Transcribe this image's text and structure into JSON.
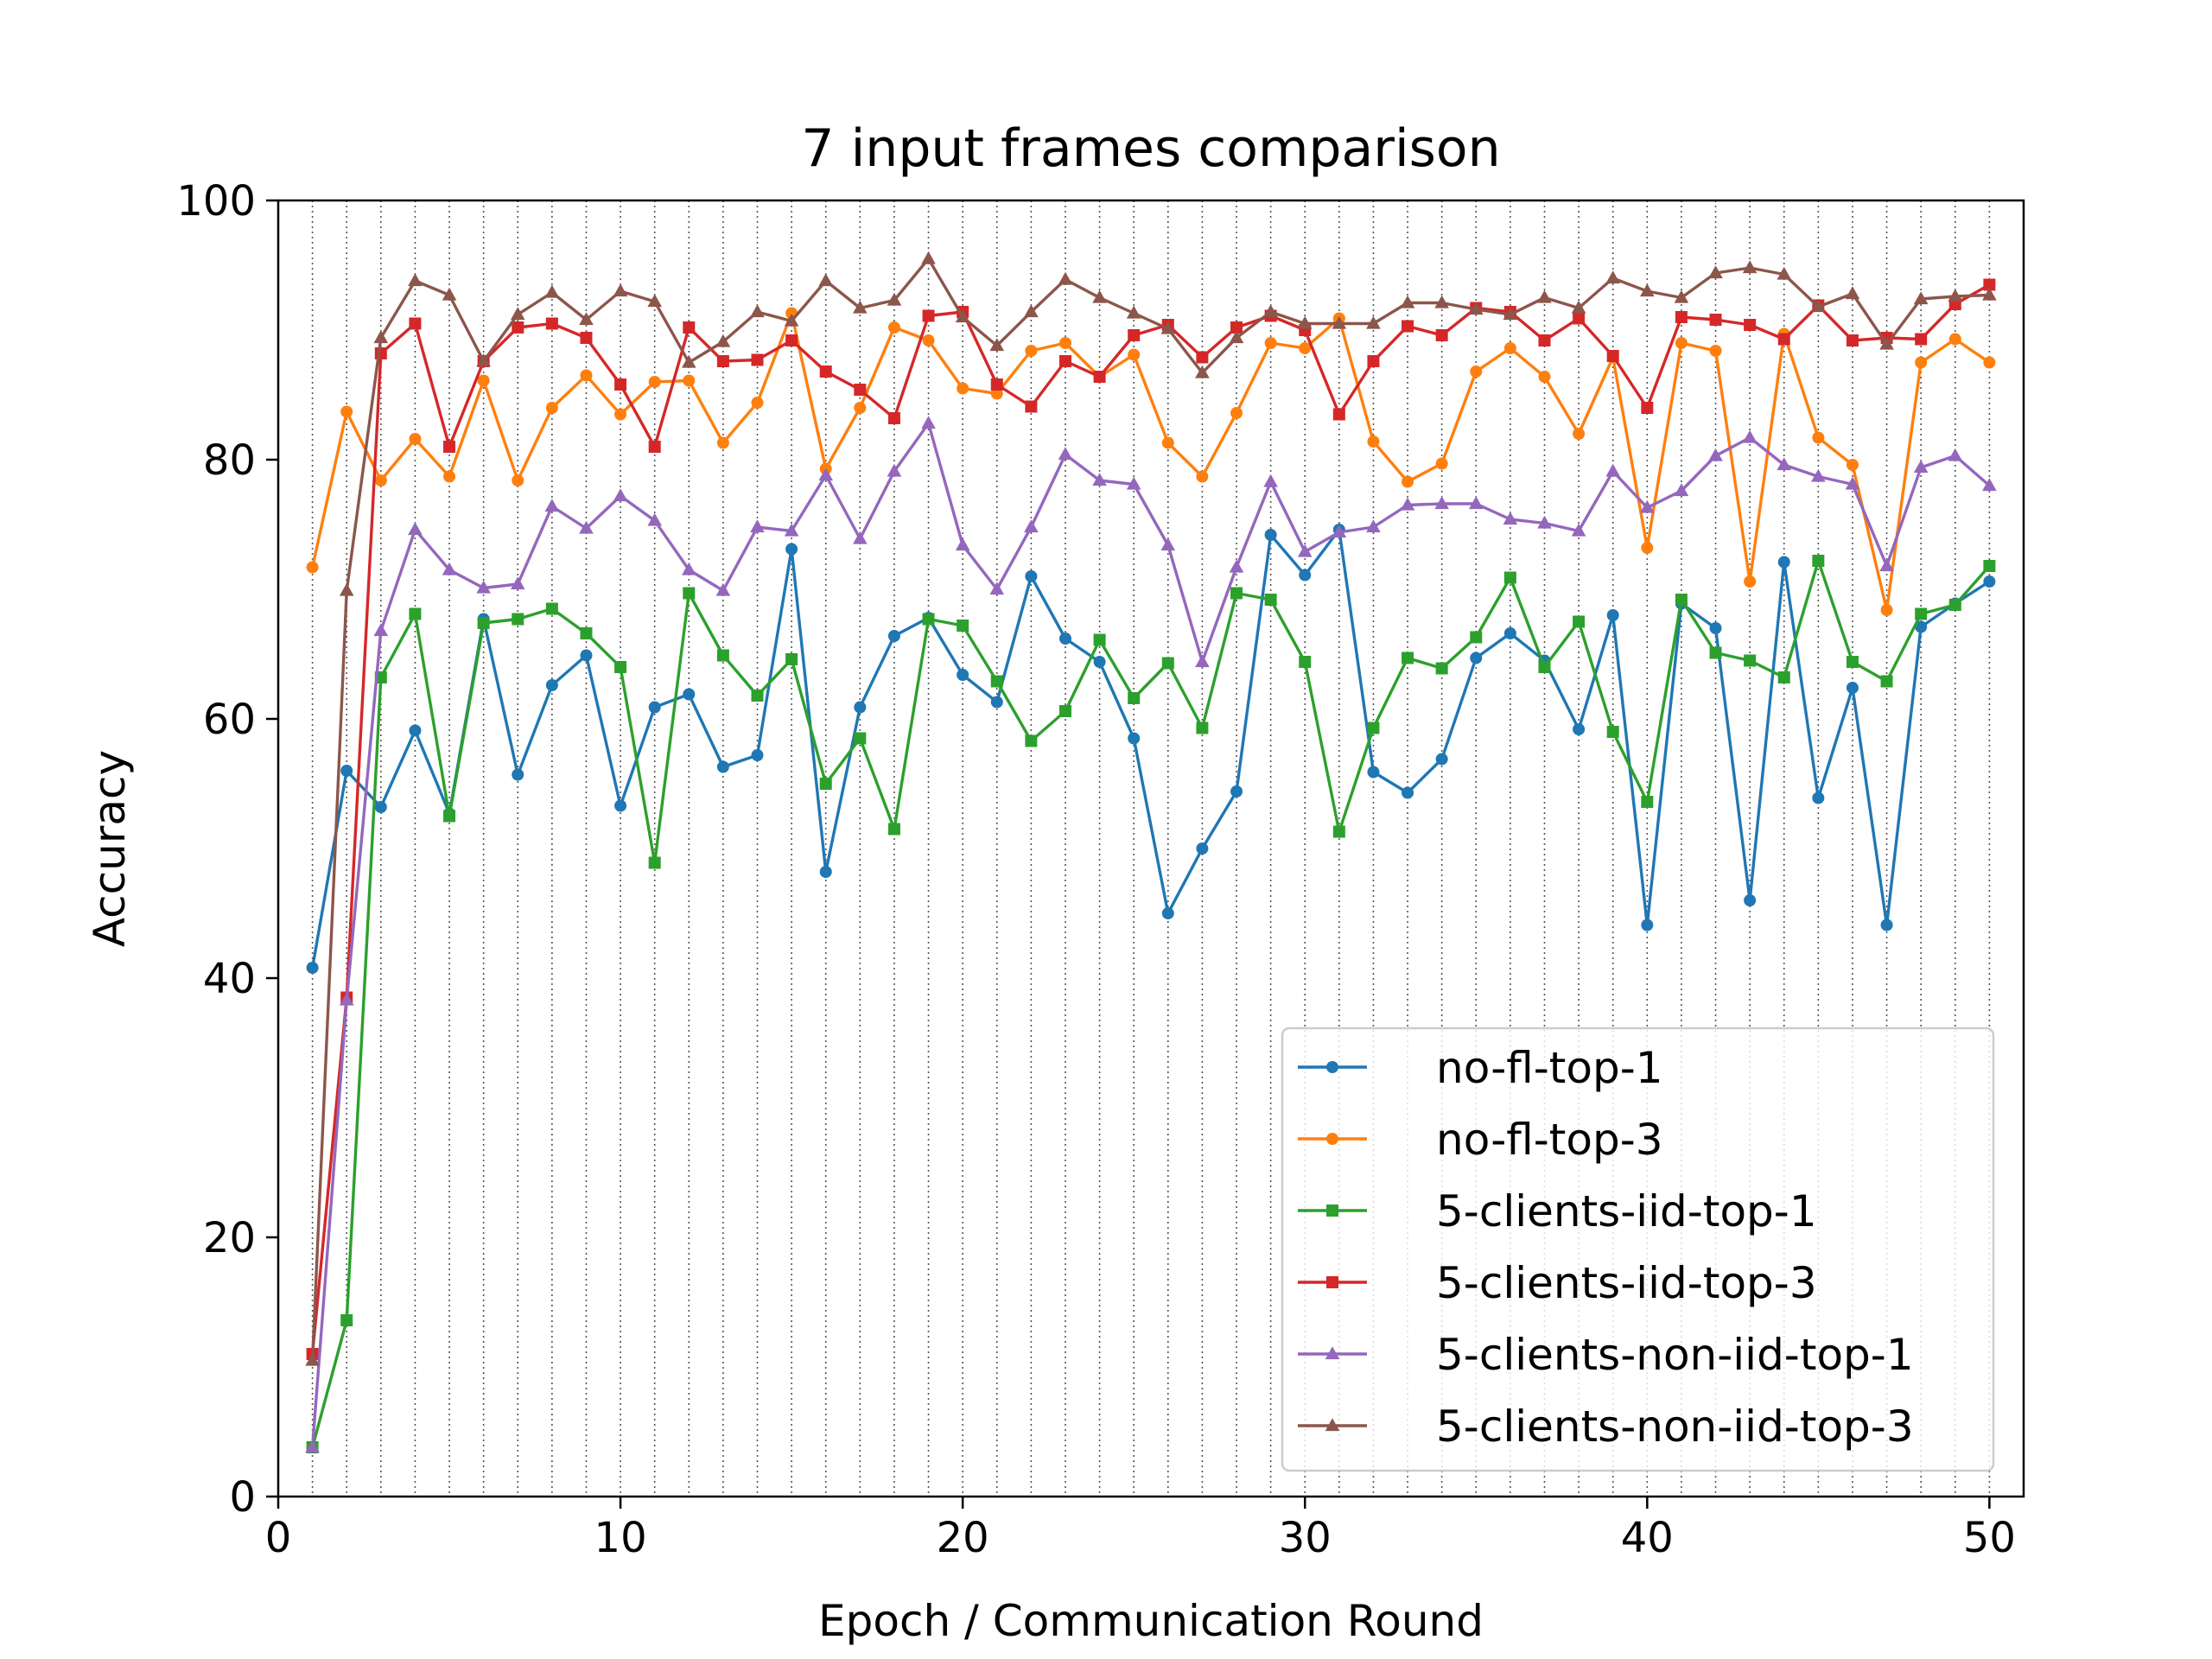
{
  "chart_data": {
    "type": "line",
    "title": "7 input frames comparison",
    "xlabel": "Epoch / Communication Round",
    "ylabel": "Accuracy",
    "xlim": [
      0,
      51
    ],
    "ylim": [
      0,
      100
    ],
    "xticks": [
      0,
      10,
      20,
      30,
      40,
      50
    ],
    "yticks": [
      0,
      20,
      40,
      60,
      80,
      100
    ],
    "grid": "vertical dotted lines at each epoch",
    "legend_position": "lower-right",
    "x": [
      1,
      2,
      3,
      4,
      5,
      6,
      7,
      8,
      9,
      10,
      11,
      12,
      13,
      14,
      15,
      16,
      17,
      18,
      19,
      20,
      21,
      22,
      23,
      24,
      25,
      26,
      27,
      28,
      29,
      30,
      31,
      32,
      33,
      34,
      35,
      36,
      37,
      38,
      39,
      40,
      41,
      42,
      43,
      44,
      45,
      46,
      47,
      48,
      49,
      50
    ],
    "series": [
      {
        "name": "no-fl-top-1",
        "color": "#1f77b4",
        "marker": "circle",
        "values": [
          40.8,
          56.0,
          53.2,
          59.1,
          52.7,
          67.7,
          55.7,
          62.6,
          64.9,
          53.3,
          60.9,
          61.9,
          56.3,
          57.2,
          73.1,
          48.2,
          60.9,
          66.4,
          67.8,
          63.4,
          61.3,
          71.0,
          66.2,
          64.4,
          58.5,
          45.0,
          50.0,
          54.4,
          74.2,
          71.1,
          74.6,
          55.9,
          54.3,
          56.9,
          64.7,
          66.6,
          64.5,
          59.2,
          68.0,
          44.1,
          68.9,
          67.0,
          46.0,
          72.1,
          53.9,
          62.4,
          44.1,
          67.1,
          68.9,
          70.6
        ]
      },
      {
        "name": "no-fl-top-3",
        "color": "#ff7f0e",
        "marker": "circle",
        "values": [
          71.7,
          83.7,
          78.4,
          81.6,
          78.7,
          86.1,
          78.4,
          84.0,
          86.5,
          83.5,
          86.0,
          86.1,
          81.3,
          84.4,
          91.3,
          79.3,
          84.0,
          90.2,
          89.2,
          85.5,
          85.1,
          88.4,
          89.0,
          86.4,
          88.1,
          81.3,
          78.7,
          83.6,
          89.0,
          88.6,
          90.9,
          81.4,
          78.3,
          79.7,
          86.8,
          88.6,
          86.4,
          82.0,
          87.9,
          73.2,
          89.0,
          88.4,
          70.6,
          89.7,
          81.7,
          79.6,
          68.4,
          87.5,
          89.3,
          87.5
        ]
      },
      {
        "name": "5-clients-iid-top-1",
        "color": "#2ca02c",
        "marker": "square",
        "values": [
          3.8,
          13.6,
          63.2,
          68.1,
          52.5,
          67.4,
          67.7,
          68.5,
          66.6,
          64.0,
          48.9,
          69.7,
          64.9,
          61.8,
          64.6,
          55.0,
          58.5,
          51.5,
          67.7,
          67.2,
          62.9,
          58.3,
          60.6,
          66.1,
          61.6,
          64.3,
          59.3,
          69.7,
          69.2,
          64.4,
          51.3,
          59.3,
          64.7,
          63.9,
          66.3,
          70.9,
          64.0,
          67.5,
          59.0,
          53.6,
          69.2,
          65.1,
          64.5,
          63.2,
          72.2,
          64.4,
          62.9,
          68.1,
          68.8,
          71.8
        ]
      },
      {
        "name": "5-clients-iid-top-3",
        "color": "#d62728",
        "marker": "square",
        "values": [
          11.0,
          38.5,
          88.2,
          90.5,
          81.0,
          87.6,
          90.2,
          90.5,
          89.4,
          85.8,
          81.0,
          90.2,
          87.6,
          87.7,
          89.2,
          86.8,
          85.4,
          83.2,
          91.1,
          91.4,
          85.8,
          84.1,
          87.6,
          86.4,
          89.6,
          90.4,
          87.9,
          90.2,
          91.1,
          90.0,
          83.5,
          87.6,
          90.3,
          89.6,
          91.7,
          91.4,
          89.2,
          90.9,
          88.0,
          84.0,
          91.0,
          90.8,
          90.4,
          89.3,
          91.9,
          89.2,
          89.4,
          89.3,
          92.0,
          93.5
        ]
      },
      {
        "name": "5-clients-non-iid-top-1",
        "color": "#9467bd",
        "marker": "triangle",
        "values": [
          3.8,
          38.3,
          66.8,
          74.6,
          71.5,
          70.1,
          70.4,
          76.4,
          74.7,
          77.2,
          75.3,
          71.5,
          69.9,
          74.8,
          74.5,
          78.8,
          73.9,
          79.1,
          82.8,
          73.4,
          70.0,
          74.8,
          80.4,
          78.4,
          78.1,
          73.4,
          64.4,
          71.7,
          78.3,
          72.9,
          74.4,
          74.8,
          76.5,
          76.6,
          76.6,
          75.4,
          75.1,
          74.5,
          79.1,
          76.3,
          77.6,
          80.3,
          81.7,
          79.6,
          78.7,
          78.1,
          71.8,
          79.4,
          80.3,
          78.0
        ]
      },
      {
        "name": "5-clients-non-iid-top-3",
        "color": "#8c564b",
        "marker": "triangle",
        "values": [
          10.5,
          69.9,
          89.4,
          93.8,
          92.7,
          87.6,
          91.2,
          92.9,
          90.8,
          93.0,
          92.2,
          87.5,
          89.1,
          91.4,
          90.7,
          93.8,
          91.7,
          92.3,
          95.5,
          91.0,
          88.8,
          91.4,
          93.9,
          92.5,
          91.3,
          90.1,
          86.7,
          89.4,
          91.4,
          90.5,
          90.5,
          90.5,
          92.1,
          92.1,
          91.6,
          91.2,
          92.5,
          91.7,
          94.0,
          93.0,
          92.5,
          94.4,
          94.8,
          94.3,
          91.8,
          92.8,
          88.9,
          92.4,
          92.6,
          92.7
        ]
      }
    ]
  }
}
